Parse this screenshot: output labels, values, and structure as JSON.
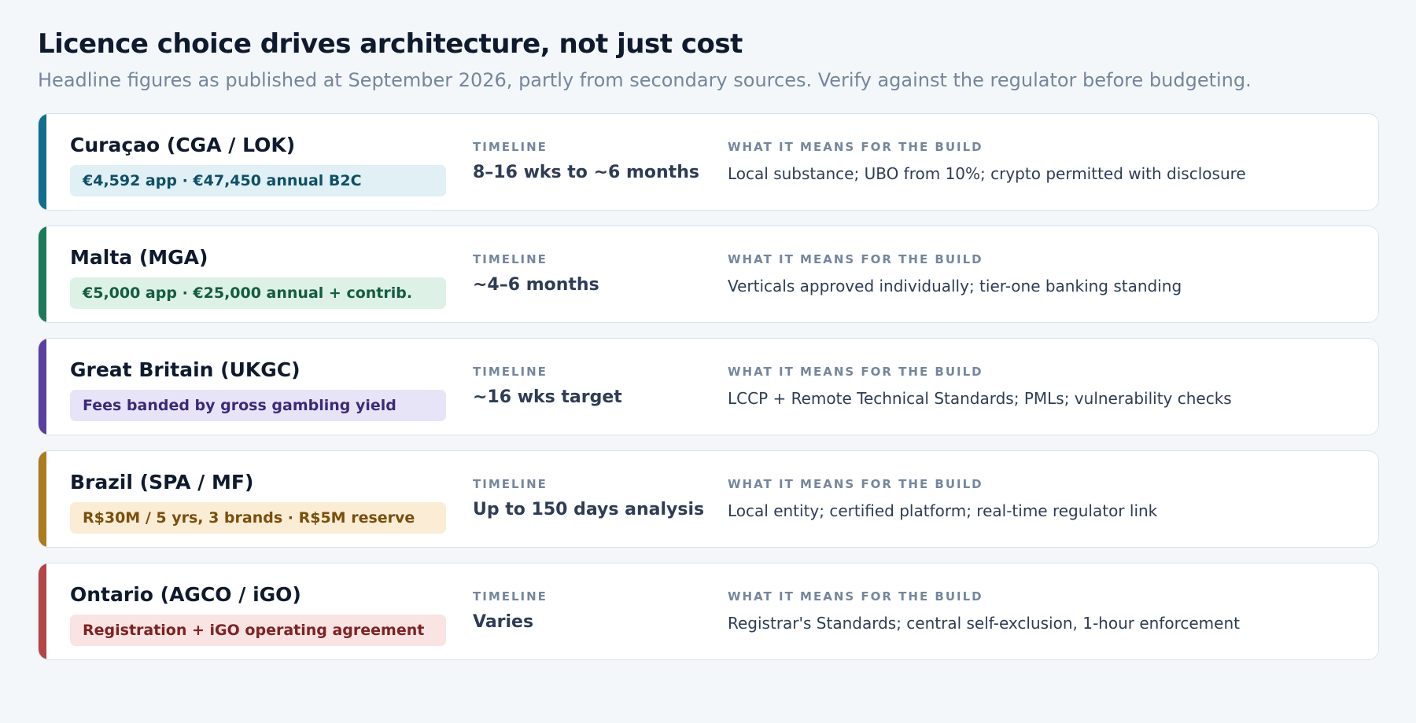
{
  "header": {
    "title": "Licence choice drives architecture, not just cost",
    "subtitle": "Headline figures as published at September 2026, partly from secondary sources. Verify against the regulator before budgeting."
  },
  "labels": {
    "timeline": "TIMELINE",
    "build": "WHAT IT MEANS FOR THE BUILD"
  },
  "licences": [
    {
      "name": "Curaçao (CGA / LOK)",
      "fees": "€4,592 app · €47,450 annual B2C",
      "timeline": "8–16 wks to ~6 months",
      "build": "Local substance; UBO from 10%; crypto permitted with disclosure",
      "accent_color": "#136e8c",
      "pill_bg": "#e0f0f5",
      "pill_text": "#0f4f66"
    },
    {
      "name": "Malta (MGA)",
      "fees": "€5,000 app · €25,000 annual + contrib.",
      "timeline": "~4–6 months",
      "build": "Verticals approved individually; tier-one banking standing",
      "accent_color": "#1f7a5a",
      "pill_bg": "#ddf1e7",
      "pill_text": "#145c40"
    },
    {
      "name": "Great Britain (UKGC)",
      "fees": "Fees banded by gross gambling yield",
      "timeline": "~16 wks target",
      "build": "LCCP + Remote Technical Standards; PMLs; vulnerability checks",
      "accent_color": "#5b3fa0",
      "pill_bg": "#e8e4f7",
      "pill_text": "#3b2a78"
    },
    {
      "name": "Brazil (SPA / MF)",
      "fees": "R$30M / 5 yrs, 3 brands · R$5M reserve",
      "timeline": "Up to 150 days analysis",
      "build": "Local entity; certified platform; real-time regulator link",
      "accent_color": "#ad7a1c",
      "pill_bg": "#fbecd6",
      "pill_text": "#7a4f0c"
    },
    {
      "name": "Ontario (AGCO / iGO)",
      "fees": "Registration + iGO operating agreement",
      "timeline": "Varies",
      "build": "Registrar's Standards; central self-exclusion, 1-hour enforcement",
      "accent_color": "#b34545",
      "pill_bg": "#fae3e3",
      "pill_text": "#7c2323"
    }
  ]
}
